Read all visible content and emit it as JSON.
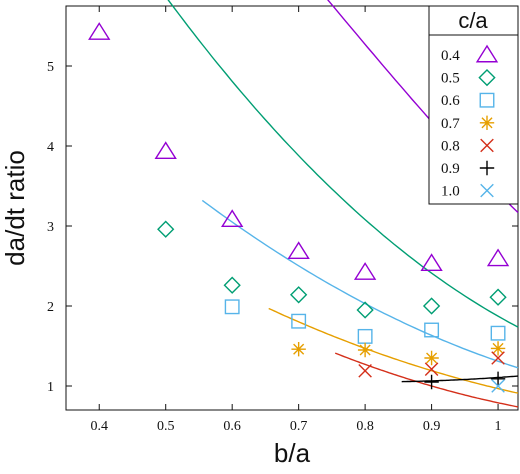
{
  "chart_data": {
    "type": "scatter",
    "xlabel": "b/a",
    "ylabel": "da/dt ratio",
    "xlim": [
      0.35,
      1.03
    ],
    "ylim": [
      0.7,
      5.75
    ],
    "xticks": [
      "0.4",
      "0.5",
      "0.6",
      "0.7",
      "0.8",
      "0.9",
      "1"
    ],
    "yticks": [
      "1",
      "2",
      "3",
      "4",
      "5"
    ],
    "grid": false,
    "legend": {
      "title": "c/a",
      "placement": "top-right"
    },
    "series": [
      {
        "name": "0.4",
        "color": "#9400D3",
        "marker": "triangle",
        "x": [
          0.4,
          0.5,
          0.6,
          0.7,
          0.8,
          0.9,
          1.0
        ],
        "y": [
          5.42,
          3.93,
          3.08,
          2.68,
          2.42,
          2.53,
          2.59
        ],
        "fit": {
          "x0": 0.36,
          "x1": 1.03,
          "coef": [
            5.27,
            -9.86,
            1.58,
            6.82
          ]
        }
      },
      {
        "name": "0.5",
        "color": "#009E73",
        "marker": "diamond",
        "x": [
          0.5,
          0.6,
          0.7,
          0.8,
          0.9,
          1.0
        ],
        "y": [
          2.96,
          2.26,
          2.14,
          1.95,
          2.0,
          2.11
        ],
        "fit": {
          "x0": 0.455,
          "x1": 1.03,
          "coef": [
            3.08,
            -7.34,
            6.52
          ]
        }
      },
      {
        "name": "0.6",
        "color": "#56B4E9",
        "marker": "square",
        "x": [
          0.6,
          0.7,
          0.8,
          0.9,
          1.0
        ],
        "y": [
          1.99,
          1.81,
          1.62,
          1.7,
          1.66
        ],
        "fit": {
          "x0": 0.555,
          "x1": 1.03,
          "coef": [
            2.03,
            -4.35,
            3.74
          ]
        }
      },
      {
        "name": "0.7",
        "color": "#E69F00",
        "marker": "asterisk",
        "x": [
          0.7,
          0.8,
          0.9,
          1.0
        ],
        "y": [
          1.46,
          1.45,
          1.35,
          1.47
        ],
        "fit": {
          "x0": 0.655,
          "x1": 1.03,
          "coef": [
            1.47,
            -3.05,
            2.69
          ]
        }
      },
      {
        "name": "0.8",
        "color": "#D42F1A",
        "marker": "x",
        "x": [
          0.8,
          0.9,
          1.0
        ],
        "y": [
          1.19,
          1.21,
          1.35
        ],
        "fit": {
          "x0": 0.755,
          "x1": 1.03,
          "coef": [
            1.27,
            -3.0,
            3.0
          ]
        }
      },
      {
        "name": "0.9",
        "color": "#000000",
        "marker": "plus",
        "x": [
          0.9,
          1.0
        ],
        "y": [
          1.05,
          1.09
        ],
        "fit": {
          "x0": 0.855,
          "x1": 1.03,
          "coef": [
            1.05,
            0.0,
            1.4
          ]
        }
      },
      {
        "name": "1.0",
        "color": "#56B4E9",
        "marker": "x",
        "x": [
          1.0
        ],
        "y": [
          1.0
        ],
        "fit": null
      }
    ]
  }
}
